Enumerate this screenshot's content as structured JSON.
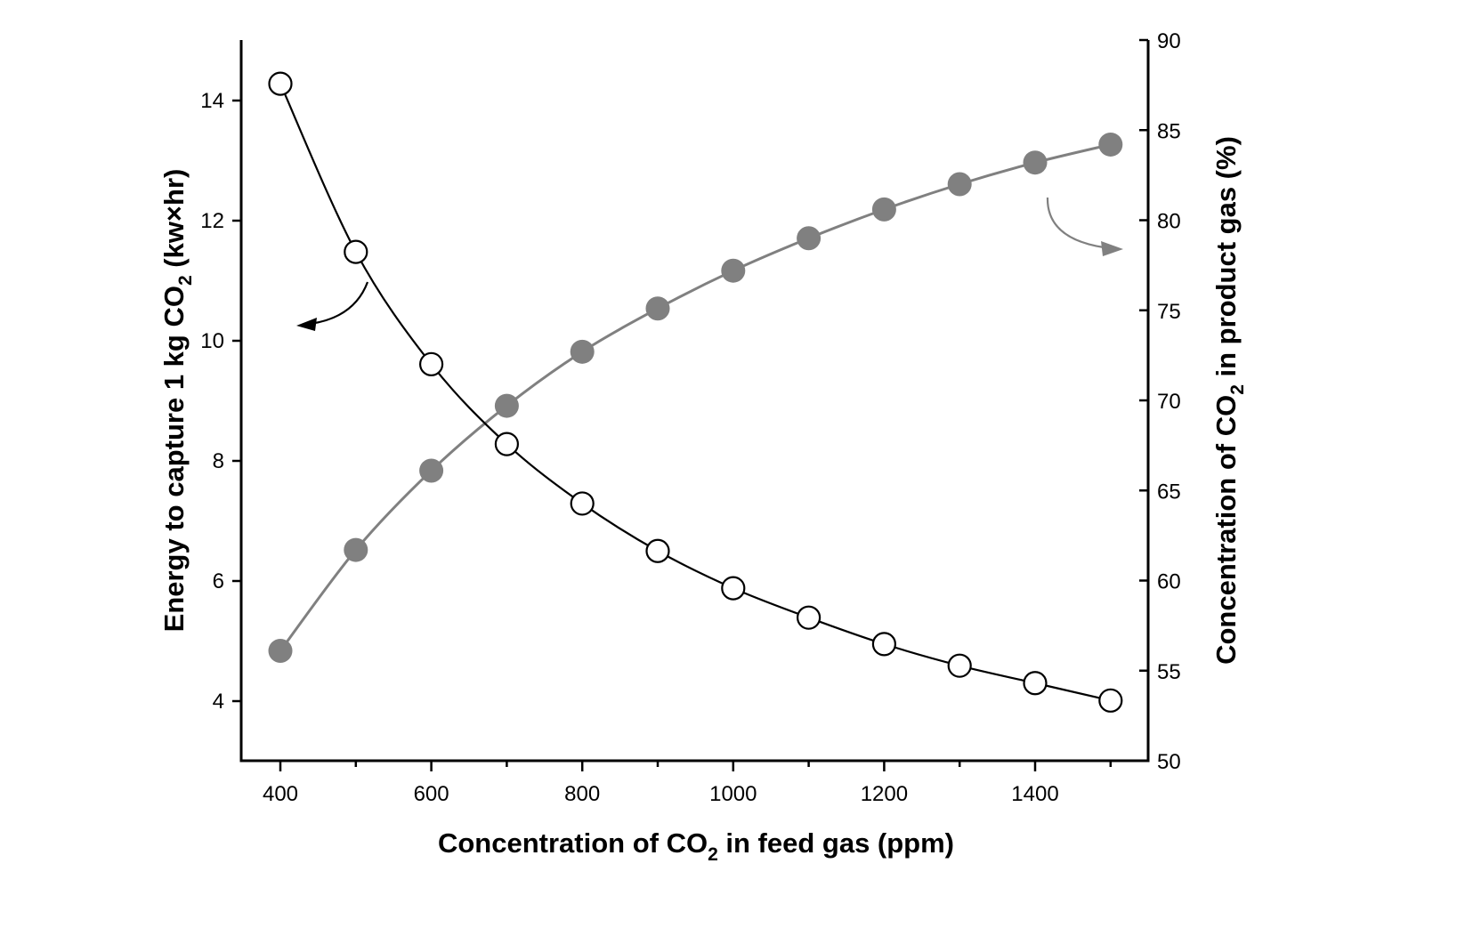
{
  "chart_data": {
    "type": "line",
    "title": "",
    "xlabel": {
      "main": "Concentration of CO",
      "sub": "2",
      "rest": " in feed gas (ppm)"
    },
    "ylabel_left": {
      "main": "Energy to capture 1 kg CO",
      "sub": "2",
      "rest": " (kw×hr)"
    },
    "ylabel_right": {
      "main": "Concentration of CO",
      "sub": "2",
      "rest": " in product gas (%)"
    },
    "xlim": [
      350,
      1560
    ],
    "ylim_left": [
      3,
      15
    ],
    "ylim_right": [
      50,
      90
    ],
    "x_ticks": [
      400,
      600,
      800,
      1000,
      1200,
      1400
    ],
    "x_ticks_labels": [
      "400",
      "600",
      "800",
      "1000",
      "1200",
      "1400"
    ],
    "x_minor_ticks": [
      500,
      700,
      900,
      1100,
      1300,
      1500
    ],
    "y_left_ticks": [
      4,
      6,
      8,
      10,
      12,
      14
    ],
    "y_left_ticks_labels": [
      "4",
      "6",
      "8",
      "10",
      "12",
      "14"
    ],
    "y_right_ticks": [
      50,
      55,
      60,
      65,
      70,
      75,
      80,
      85,
      90
    ],
    "y_right_ticks_labels": [
      "50",
      "55",
      "60",
      "65",
      "70",
      "75",
      "80",
      "85",
      "90"
    ],
    "grid": false,
    "x": [
      400,
      500,
      600,
      700,
      800,
      900,
      1000,
      1100,
      1200,
      1300,
      1400,
      1500
    ],
    "series": [
      {
        "name": "Energy to capture 1 kg CO2",
        "axis": "left",
        "marker": "open-circle",
        "color": "#000000",
        "values": [
          14.28,
          11.48,
          9.61,
          8.28,
          7.29,
          6.5,
          5.88,
          5.39,
          4.95,
          4.59,
          4.3,
          4.01
        ]
      },
      {
        "name": "Concentration of CO2 in product gas",
        "axis": "right",
        "marker": "filled-circle",
        "color": "#808080",
        "values": [
          56.1,
          61.7,
          66.1,
          69.7,
          72.7,
          75.1,
          77.2,
          79.0,
          80.6,
          82.0,
          83.2,
          84.2
        ]
      }
    ],
    "annotations": [
      {
        "type": "arrow",
        "points_to": "left-axis",
        "series": "Energy to capture 1 kg CO2",
        "color": "#000000"
      },
      {
        "type": "arrow",
        "points_to": "right-axis",
        "series": "Concentration of CO2 in product gas",
        "color": "#808080"
      }
    ]
  }
}
